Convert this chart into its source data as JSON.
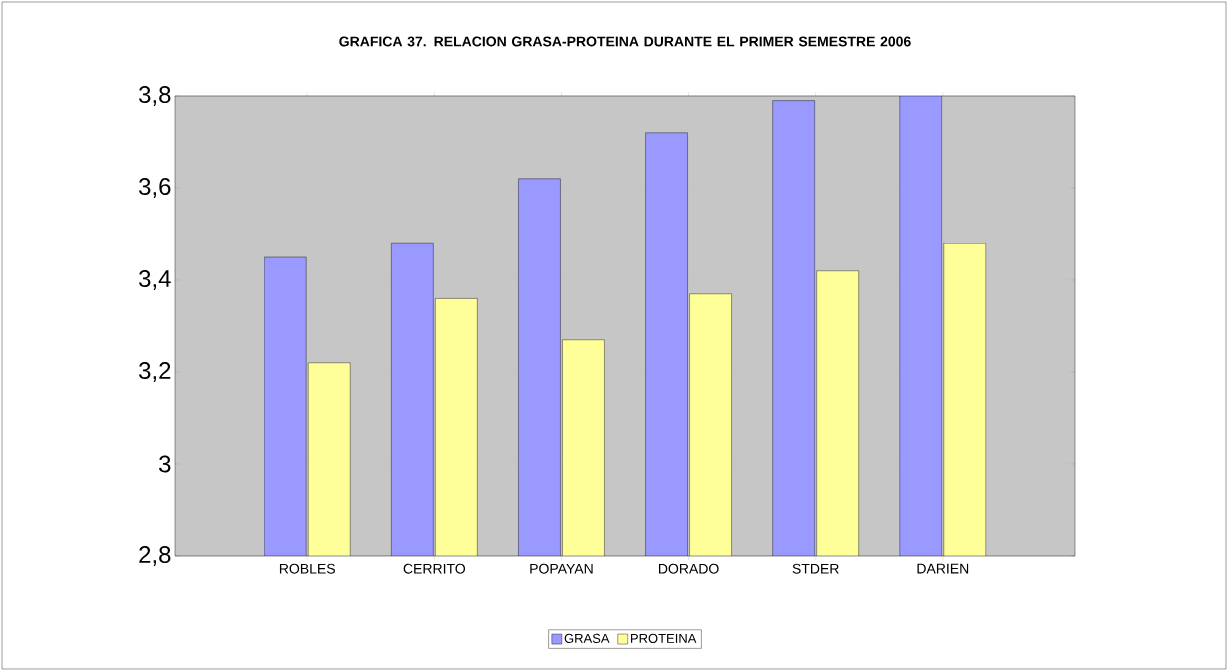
{
  "chart_data": {
    "type": "bar",
    "title": "GRAFICA 37. RELACION GRASA-PROTEINA DURANTE EL PRIMER SEMESTRE 2006",
    "categories": [
      "ROBLES",
      "CERRITO",
      "POPAYAN",
      "DORADO",
      "STDER",
      "DARIEN"
    ],
    "series": [
      {
        "name": "GRASA",
        "color": "#9999ff",
        "values": [
          3.45,
          3.48,
          3.62,
          3.72,
          3.79,
          3.8
        ]
      },
      {
        "name": "PROTEINA",
        "color": "#ffff99",
        "values": [
          3.22,
          3.36,
          3.27,
          3.37,
          3.42,
          3.48
        ]
      }
    ],
    "ylim": [
      2.8,
      3.8
    ],
    "yticks": [
      {
        "value": 2.8,
        "label": "2,8"
      },
      {
        "value": 3,
        "label": "3"
      },
      {
        "value": 3.2,
        "label": "3,2"
      },
      {
        "value": 3.4,
        "label": "3,4"
      },
      {
        "value": 3.6,
        "label": "3,6"
      },
      {
        "value": 3.8,
        "label": "3,8"
      }
    ],
    "grid": "y",
    "legend": "bottom"
  }
}
